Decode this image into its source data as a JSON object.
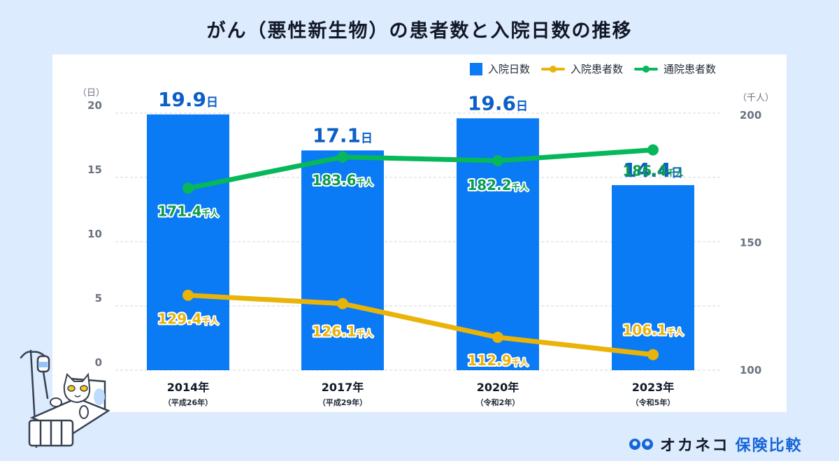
{
  "title": "がん（悪性新生物）の患者数と入院日数の推移",
  "legend": [
    {
      "label": "入院日数",
      "type": "bar",
      "color": "#0a7af5"
    },
    {
      "label": "入院患者数",
      "type": "line",
      "color": "#eab308"
    },
    {
      "label": "通院患者数",
      "type": "line",
      "color": "#06b85a"
    }
  ],
  "logo": {
    "brand": "オカネコ",
    "service": "保険比較",
    "icon": "okaneko-face-icon"
  },
  "illustration": "cat-in-hospital-bed",
  "chart_data": {
    "type": "bar+line",
    "title": "がん（悪性新生物）の患者数と入院日数の推移",
    "categories": [
      "2014年",
      "2017年",
      "2020年",
      "2023年"
    ],
    "category_sublabels": [
      "（平成26年）",
      "（平成29年）",
      "（令和2年）",
      "（令和5年）"
    ],
    "left_axis": {
      "unit": "（日）",
      "ticks": [
        0,
        5,
        10,
        15,
        20
      ],
      "range": [
        0,
        20
      ]
    },
    "right_axis": {
      "unit": "（千人）",
      "ticks": [
        100,
        150,
        200
      ],
      "range": [
        100,
        200
      ]
    },
    "grid": true,
    "legend_position": "top-right",
    "series": [
      {
        "name": "入院日数",
        "type": "bar",
        "axis": "left",
        "color": "#0a7af5",
        "label_color": "#0b5fc7",
        "unit": "日",
        "values": [
          19.9,
          17.1,
          19.6,
          14.4
        ]
      },
      {
        "name": "入院患者数",
        "type": "line",
        "axis": "right",
        "color": "#eab308",
        "label_color": "#eab308",
        "unit": "千人",
        "values": [
          129.4,
          126.1,
          112.9,
          106.1
        ]
      },
      {
        "name": "通院患者数",
        "type": "line",
        "axis": "right",
        "color": "#06b85a",
        "label_color": "#0a9d4d",
        "unit": "千人",
        "values": [
          171.4,
          183.6,
          182.2,
          186.4
        ]
      }
    ]
  }
}
